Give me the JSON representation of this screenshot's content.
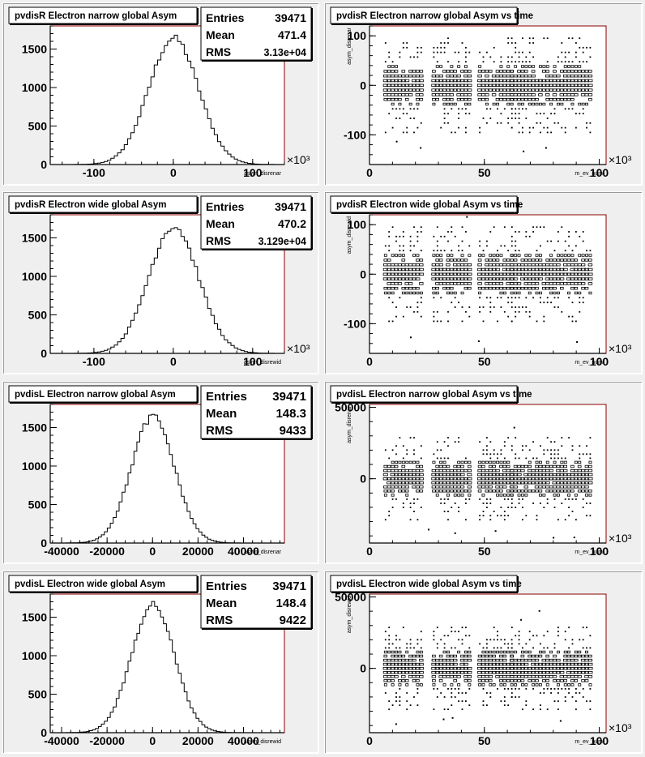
{
  "canvas": {
    "background": "#efefef",
    "frame_color": "#ffffff",
    "axis_frame_color": "#8b0000"
  },
  "chart_data": [
    {
      "type": "bar",
      "title": "pvdisR Electron narrow global Asym",
      "xlabel": "asym_disrenar",
      "ylabel": "",
      "x_multiplier": "×10³",
      "xlim": [
        -155,
        140
      ],
      "ylim": [
        0,
        1800
      ],
      "x_ticks": [
        -100,
        0,
        100
      ],
      "x_tick_labels": [
        "-100",
        "0",
        "100"
      ],
      "y_ticks": [
        0,
        500,
        1000,
        1500
      ],
      "y_tick_labels": [
        "0",
        "500",
        "1000",
        "1500"
      ],
      "stats": {
        "entries_label": "Entries",
        "entries": "39471",
        "mean_label": "Mean",
        "mean": "471.4",
        "rms_label": "RMS",
        "rms": "3.13e+04"
      },
      "hist": {
        "mean": 0.5,
        "sigma": 31.3,
        "peak": 1640,
        "bin_width": 4.2,
        "range": [
          -150,
          130
        ]
      }
    },
    {
      "type": "scatter",
      "title": "pvdisR Electron narrow global Asym vs time",
      "xlabel": "m_ev_num",
      "ylabel": "asym_disrenar",
      "x_multiplier": "×10³",
      "xlim": [
        0,
        103
      ],
      "ylim": [
        -160,
        120
      ],
      "x_ticks": [
        0,
        50,
        100
      ],
      "x_tick_labels": [
        "0",
        "50",
        "100"
      ],
      "y_ticks": [
        -100,
        0,
        100
      ],
      "y_tick_labels": [
        "-100",
        "0",
        "100"
      ],
      "time_blocks": [
        [
          7,
          24
        ],
        [
          28,
          45
        ],
        [
          48,
          62
        ],
        [
          62,
          97
        ]
      ],
      "spread": 31.3
    },
    {
      "type": "bar",
      "title": "pvdisR Electron wide global Asym",
      "xlabel": "asym_disrewid",
      "ylabel": "",
      "x_multiplier": "×10³",
      "xlim": [
        -155,
        140
      ],
      "ylim": [
        0,
        1800
      ],
      "x_ticks": [
        -100,
        0,
        100
      ],
      "x_tick_labels": [
        "-100",
        "0",
        "100"
      ],
      "y_ticks": [
        0,
        500,
        1000,
        1500
      ],
      "y_tick_labels": [
        "0",
        "500",
        "1000",
        "1500"
      ],
      "stats": {
        "entries_label": "Entries",
        "entries": "39471",
        "mean_label": "Mean",
        "mean": "470.2",
        "rms_label": "RMS",
        "rms": "3.129e+04"
      },
      "hist": {
        "mean": 0.5,
        "sigma": 31.3,
        "peak": 1650,
        "bin_width": 4.2,
        "range": [
          -150,
          130
        ]
      }
    },
    {
      "type": "scatter",
      "title": "pvdisR Electron wide global Asym vs time",
      "xlabel": "m_ev_num",
      "ylabel": "asym_disrewid",
      "x_multiplier": "×10³",
      "xlim": [
        0,
        103
      ],
      "ylim": [
        -160,
        120
      ],
      "x_ticks": [
        0,
        50,
        100
      ],
      "x_tick_labels": [
        "0",
        "50",
        "100"
      ],
      "y_ticks": [
        -100,
        0,
        100
      ],
      "y_tick_labels": [
        "-100",
        "0",
        "100"
      ],
      "time_blocks": [
        [
          7,
          24
        ],
        [
          28,
          45
        ],
        [
          48,
          62
        ],
        [
          62,
          97
        ]
      ],
      "spread": 31.3
    },
    {
      "type": "bar",
      "title": "pvdisL Electron narrow global Asym",
      "xlabel": "asym_disrenar",
      "ylabel": "",
      "x_multiplier": "",
      "xlim": [
        -45000,
        58000
      ],
      "ylim": [
        0,
        1800
      ],
      "x_ticks": [
        -40000,
        -20000,
        0,
        20000,
        40000
      ],
      "x_tick_labels": [
        "-40000",
        "-20000",
        "0",
        "20000",
        "40000"
      ],
      "y_ticks": [
        0,
        500,
        1000,
        1500
      ],
      "y_tick_labels": [
        "0",
        "500",
        "1000",
        "1500"
      ],
      "stats": {
        "entries_label": "Entries",
        "entries": "39471",
        "mean_label": "Mean",
        "mean": "148.3",
        "rms_label": "RMS",
        "rms": "9433"
      },
      "hist": {
        "mean": 148,
        "sigma": 9433,
        "peak": 1640,
        "bin_width": 1300,
        "range": [
          -42000,
          45000
        ]
      }
    },
    {
      "type": "scatter",
      "title": "pvdisL Electron narrow global Asym vs time",
      "xlabel": "m_ev_num",
      "ylabel": "asym_disrenar",
      "x_multiplier": "×10³",
      "xlim": [
        0,
        103
      ],
      "ylim": [
        -45000,
        52000
      ],
      "x_ticks": [
        0,
        50,
        100
      ],
      "x_tick_labels": [
        "0",
        "50",
        "100"
      ],
      "y_ticks": [
        0,
        50000
      ],
      "y_tick_labels": [
        "0",
        "50000"
      ],
      "time_blocks": [
        [
          7,
          24
        ],
        [
          28,
          45
        ],
        [
          48,
          62
        ],
        [
          62,
          97
        ]
      ],
      "spread": 9433
    },
    {
      "type": "bar",
      "title": "pvdisL Electron wide global Asym",
      "xlabel": "asym_disrewid",
      "ylabel": "",
      "x_multiplier": "",
      "xlim": [
        -45000,
        58000
      ],
      "ylim": [
        0,
        1800
      ],
      "x_ticks": [
        -40000,
        -20000,
        0,
        20000,
        40000
      ],
      "x_tick_labels": [
        "-40000",
        "-20000",
        "0",
        "20000",
        "40000"
      ],
      "y_ticks": [
        0,
        500,
        1000,
        1500
      ],
      "y_tick_labels": [
        "0",
        "500",
        "1000",
        "1500"
      ],
      "stats": {
        "entries_label": "Entries",
        "entries": "39471",
        "mean_label": "Mean",
        "mean": "148.4",
        "rms_label": "RMS",
        "rms": "9422"
      },
      "hist": {
        "mean": 148,
        "sigma": 9422,
        "peak": 1670,
        "bin_width": 1300,
        "range": [
          -42000,
          45000
        ]
      }
    },
    {
      "type": "scatter",
      "title": "pvdisL Electron wide global Asym vs time",
      "xlabel": "m_ev_num",
      "ylabel": "asym_disrewid",
      "x_multiplier": "×10³",
      "xlim": [
        0,
        103
      ],
      "ylim": [
        -45000,
        52000
      ],
      "x_ticks": [
        0,
        50,
        100
      ],
      "x_tick_labels": [
        "0",
        "50",
        "100"
      ],
      "y_ticks": [
        0,
        50000
      ],
      "y_tick_labels": [
        "0",
        "50000"
      ],
      "time_blocks": [
        [
          7,
          24
        ],
        [
          28,
          45
        ],
        [
          48,
          62
        ],
        [
          62,
          97
        ]
      ],
      "spread": 9422
    }
  ]
}
